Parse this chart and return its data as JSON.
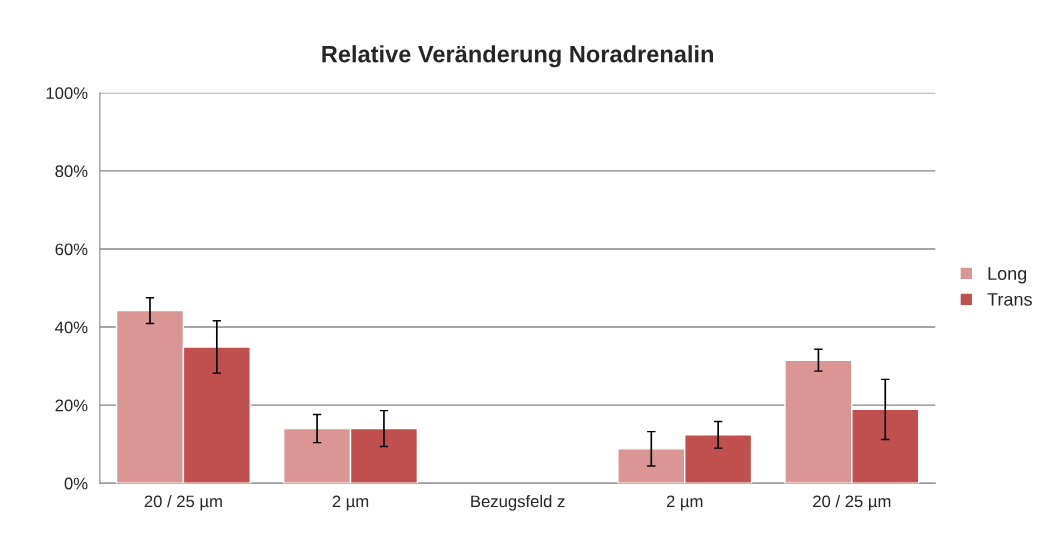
{
  "chart_data": {
    "type": "bar",
    "title": "Relative Veränderung Noradrenalin",
    "categories": [
      "20 / 25 µm",
      "2 µm",
      "Bezugsfeld z",
      "2 µm",
      "20 / 25 µm"
    ],
    "series": [
      {
        "name": "Long",
        "color": "#d99694",
        "values": [
          44.2,
          14.0,
          null,
          8.8,
          31.5
        ],
        "errors": [
          3.3,
          3.6,
          null,
          4.4,
          2.8
        ]
      },
      {
        "name": "Trans",
        "color": "#c0504d",
        "values": [
          34.9,
          14.0,
          null,
          12.4,
          18.9
        ],
        "errors": [
          6.7,
          4.6,
          null,
          3.4,
          7.7
        ]
      }
    ],
    "ylim": [
      0,
      100
    ],
    "yticks": [
      {
        "value": 0,
        "label": "0%"
      },
      {
        "value": 20,
        "label": "20%"
      },
      {
        "value": 40,
        "label": "40%"
      },
      {
        "value": 60,
        "label": "60%"
      },
      {
        "value": 80,
        "label": "80%"
      },
      {
        "value": 100,
        "label": "100%"
      }
    ],
    "grid": "y",
    "legend": "right"
  }
}
